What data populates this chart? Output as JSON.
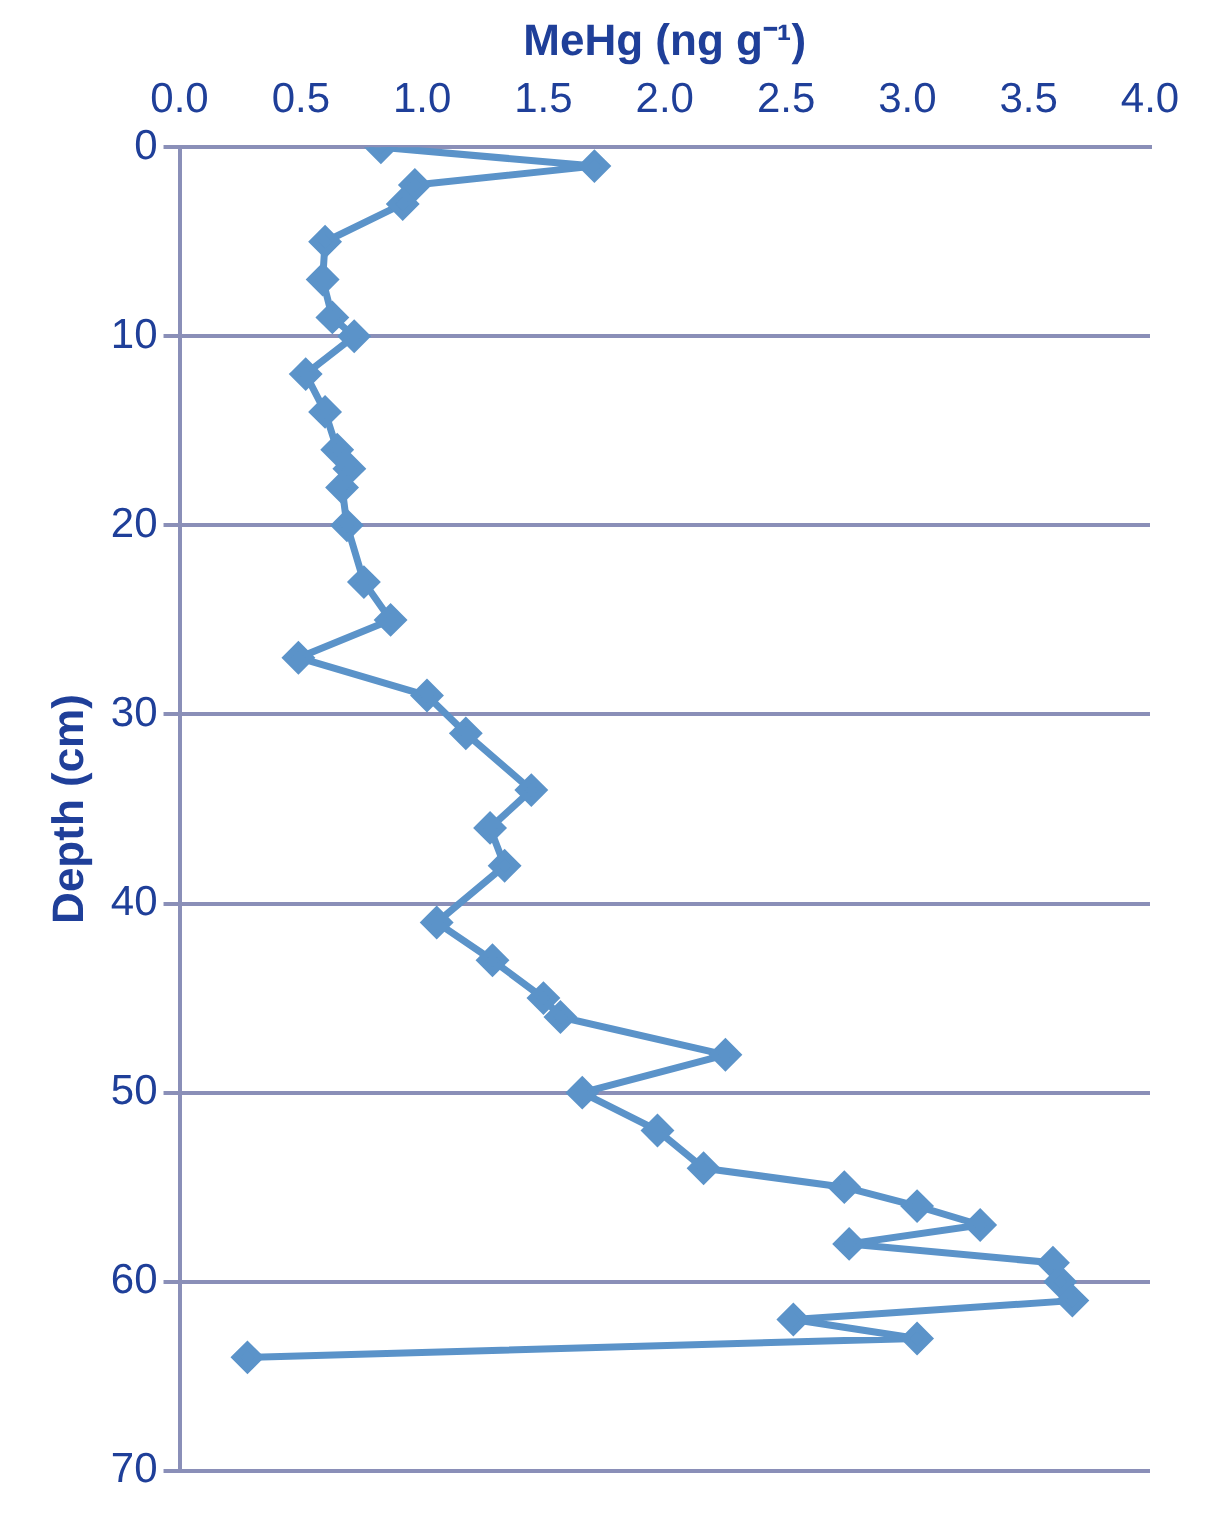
{
  "chart_data": {
    "type": "line",
    "xlabel": "MeHg (ng g⁻¹)",
    "ylabel": "Depth (cm)",
    "series": [
      {
        "color": "#5b93c9",
        "x": [
          0.83,
          1.71,
          0.97,
          0.92,
          0.6,
          0.59,
          0.63,
          0.72,
          0.52,
          0.6,
          0.65,
          0.7,
          0.67,
          0.69,
          0.76,
          0.87,
          0.49,
          1.02,
          1.18,
          1.45,
          1.28,
          1.34,
          1.06,
          1.29,
          1.5,
          1.57,
          2.25,
          1.66,
          1.97,
          2.16,
          2.74,
          3.04,
          3.3,
          2.76,
          3.6,
          3.63,
          3.68,
          2.53,
          3.04,
          0.28
        ],
        "values": [
          0,
          1,
          2,
          3,
          5,
          7,
          9,
          10,
          12,
          14,
          16,
          17,
          18,
          20,
          23,
          25,
          27,
          29,
          31,
          34,
          36,
          38,
          41,
          43,
          45,
          46,
          48,
          50,
          52,
          54,
          55,
          56,
          57,
          58,
          59,
          60,
          61,
          62,
          63,
          64
        ]
      }
    ],
    "xlim": [
      0,
      4
    ],
    "xticks": [
      {
        "value": 0,
        "label": "0.0"
      },
      {
        "value": 0.5,
        "label": "0.5"
      },
      {
        "value": 1,
        "label": "1.0"
      },
      {
        "value": 1.5,
        "label": "1.5"
      },
      {
        "value": 2,
        "label": "2.0"
      },
      {
        "value": 2.5,
        "label": "2.5"
      },
      {
        "value": 3,
        "label": "3.0"
      },
      {
        "value": 3.5,
        "label": "3.5"
      },
      {
        "value": 4,
        "label": "4.0"
      }
    ],
    "ylim": [
      70,
      0
    ],
    "yticks": [
      0,
      10,
      20,
      30,
      40,
      50,
      60,
      70
    ],
    "grid": "y",
    "marker": "diamond",
    "line_style": "solid",
    "legend": false
  }
}
